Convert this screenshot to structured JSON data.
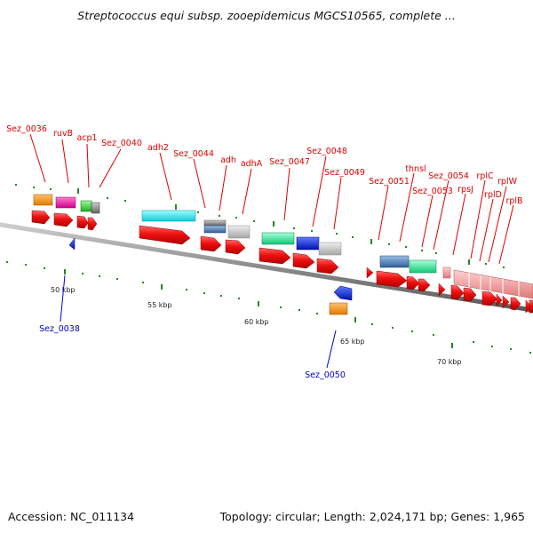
{
  "header": {
    "title": "Streptococcus equi subsp. zooepidemicus MGCS10565, complete ..."
  },
  "footer": {
    "accession": "Accession: NC_011134",
    "topology": "Topology: circular; Length: 2,024,171 bp; Genes: 1,965"
  },
  "scale": {
    "tick_labels": [
      "50 kbp",
      "55 kbp",
      "60 kbp",
      "65 kbp",
      "70 kbp"
    ]
  },
  "labels": {
    "top_red": [
      "Sez_0036",
      "ruvB",
      "acp1",
      "Sez_0040",
      "adh2",
      "Sez_0044",
      "adh",
      "adhA",
      "Sez_0047",
      "Sez_0048",
      "Sez_0049",
      "Sez_0051",
      "thnsl",
      "Sez_0053",
      "Sez_0054",
      "rpsJ",
      "rplC",
      "rplD",
      "rplW",
      "rplB"
    ],
    "bottom_blue": [
      "Sez_0038",
      "Sez_0050"
    ]
  },
  "colors": {
    "backbone": "#888888",
    "gene_red": "#ee1111",
    "label_red": "#dd0000",
    "label_blue": "#0000cc",
    "tick_green": "#228822",
    "orange": "#f08c1e",
    "magenta": "#ee22aa",
    "green": "#44cc44",
    "cyan": "#22e6ee",
    "steel_blue": "#4a7eb8",
    "silver": "#c4c4c4",
    "teal_green": "#2de8a0",
    "blue": "#1133dd",
    "pink": "#f49a9a"
  }
}
